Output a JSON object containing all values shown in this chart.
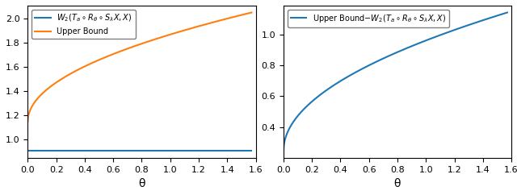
{
  "xlim": [
    0.0,
    1.6
  ],
  "theta_max": 1.5708,
  "n_points": 1000,
  "xlabel": "θ",
  "left_legend1": "$W_2(T_a \\circ R_\\theta \\circ S_\\lambda X, X)$",
  "left_legend2": "Upper Bound",
  "right_legend": "Upper Bound$-W_2(T_a \\circ R_\\theta \\circ S_\\lambda X, X)$",
  "blue_color": "#1f77b4",
  "orange_color": "#ff7f0e",
  "blue_flat_value": 0.905,
  "ub_a": 1.15,
  "ub_b": 0.718,
  "figwidth": 6.4,
  "figheight": 2.42,
  "dpi": 100
}
